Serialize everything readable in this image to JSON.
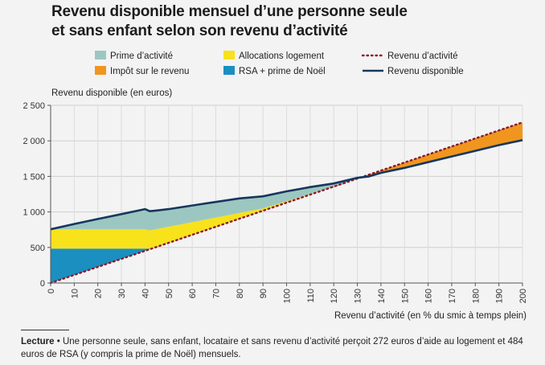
{
  "chart_data": {
    "type": "area",
    "title_lines": [
      "Revenu disponible mensuel d’une personne seule",
      "et sans enfant selon son revenu d’activité"
    ],
    "ylabel": "Revenu disponible (en euros)",
    "xlabel": "Revenu d’activité (en % du smic à temps plein)",
    "xlim": [
      0,
      200
    ],
    "ylim": [
      0,
      2500
    ],
    "x_ticks": [
      0,
      10,
      20,
      30,
      40,
      50,
      60,
      70,
      80,
      90,
      100,
      110,
      120,
      130,
      140,
      150,
      160,
      170,
      180,
      190,
      200
    ],
    "y_ticks": [
      {
        "value": 0,
        "label": "0"
      },
      {
        "value": 500,
        "label": "500"
      },
      {
        "value": 1000,
        "label": "1 000"
      },
      {
        "value": 1500,
        "label": "1 500"
      },
      {
        "value": 2000,
        "label": "2 000"
      },
      {
        "value": 2500,
        "label": "2 500"
      }
    ],
    "grid": true,
    "legend": [
      {
        "name": "Prime d’activité",
        "kind": "fill",
        "color": "#9cc7c0"
      },
      {
        "name": "Allocations logement",
        "kind": "fill",
        "color": "#f7e21c"
      },
      {
        "name": "Revenu d’activité",
        "kind": "dotted",
        "color": "#8b1a2b"
      },
      {
        "name": "Impôt sur le revenu",
        "kind": "fill",
        "color": "#f0961e"
      },
      {
        "name": "RSA + prime de Noël",
        "kind": "fill",
        "color": "#1a8fc0"
      },
      {
        "name": "Revenu disponible",
        "kind": "line",
        "color": "#17375e"
      }
    ],
    "series": {
      "revenu_activite": {
        "x": [
          0,
          200
        ],
        "y": [
          0,
          2260
        ]
      },
      "revenu_disponible": {
        "x": [
          0,
          10,
          20,
          30,
          40,
          42,
          45,
          50,
          60,
          70,
          80,
          90,
          100,
          110,
          120,
          125,
          130,
          135,
          140,
          150,
          160,
          170,
          180,
          190,
          200
        ],
        "y": [
          756,
          830,
          900,
          970,
          1040,
          1010,
          1020,
          1040,
          1090,
          1140,
          1190,
          1220,
          1290,
          1350,
          1400,
          1440,
          1480,
          1500,
          1550,
          1620,
          1700,
          1780,
          1860,
          1940,
          2010
        ]
      },
      "rsa_prime_noel": {
        "x": [
          0,
          42
        ],
        "y": [
          484,
          484
        ]
      },
      "allocations_logement": {
        "x": [
          0,
          40,
          42,
          90,
          125
        ],
        "y": [
          756,
          756,
          740,
          1050,
          1400
        ]
      }
    },
    "colors": {
      "prime_activite": "#9cc7c0",
      "allocations_logement": "#f7e21c",
      "impot": "#f0961e",
      "rsa": "#1a8fc0",
      "revenu_disponible": "#17375e",
      "revenu_activite": "#8b1a2b"
    }
  },
  "footnote": {
    "lead": "Lecture",
    "text": " • Une personne seule, sans enfant, locataire et sans revenu d’activité perçoit 272 euros d’aide au logement et 484 euros de RSA (y compris la prime de Noël) mensuels."
  }
}
